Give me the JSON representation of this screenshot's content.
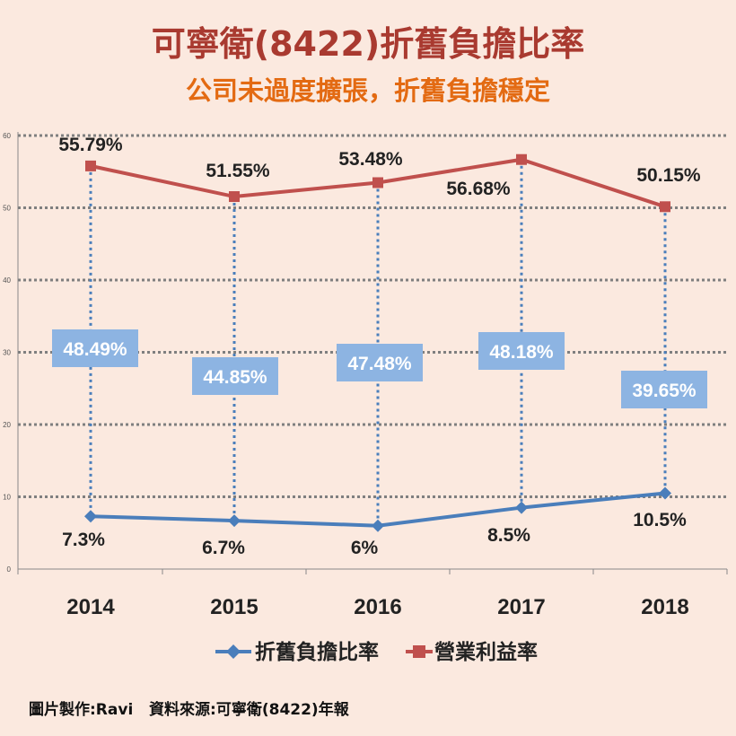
{
  "header": {
    "title": "可寧衛(8422)折舊負擔比率",
    "subtitle": "公司未過度擴張，折舊負擔穩定"
  },
  "footer": {
    "credit": "圖片製作:Ravi",
    "source": "資料來源:可寧衛(8422)年報"
  },
  "chart_data": {
    "type": "line",
    "categories": [
      "2014",
      "2015",
      "2016",
      "2017",
      "2018"
    ],
    "ylim": [
      0,
      60
    ],
    "yticks": [
      0,
      10,
      20,
      30,
      40,
      50,
      60
    ],
    "grid": true,
    "legend_position": "bottom",
    "series": [
      {
        "name": "折舊負擔比率",
        "values": [
          7.3,
          6.7,
          6.0,
          8.5,
          10.5
        ],
        "labels": [
          "7.3%",
          "6.7%",
          "6%",
          "8.5%",
          "10.5%"
        ],
        "color": "#4a7ebb",
        "marker": "diamond"
      },
      {
        "name": "營業利益率",
        "values": [
          55.79,
          51.55,
          53.48,
          56.68,
          50.15
        ],
        "labels": [
          "55.79%",
          "51.55%",
          "53.48%",
          "56.68%",
          "50.15%"
        ],
        "color": "#c0504d",
        "marker": "square"
      }
    ],
    "annotations": {
      "values": [
        48.49,
        44.85,
        47.48,
        48.18,
        39.65
      ],
      "labels": [
        "48.49%",
        "44.85%",
        "47.48%",
        "48.18%",
        "39.65%"
      ],
      "box_color": "#8db4e2"
    }
  }
}
